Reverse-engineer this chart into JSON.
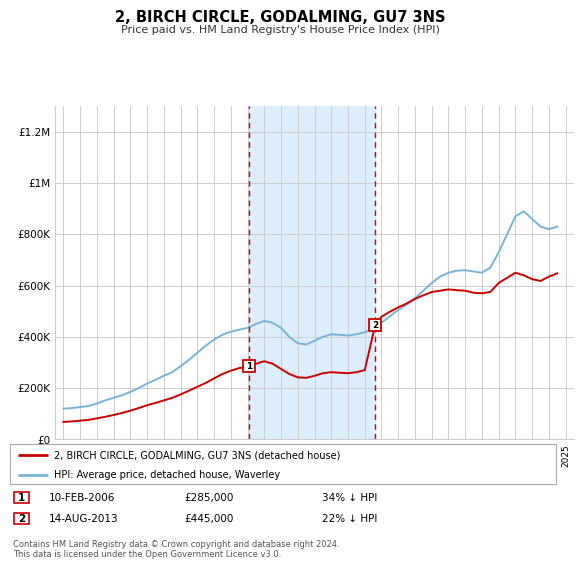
{
  "title": "2, BIRCH CIRCLE, GODALMING, GU7 3NS",
  "subtitle": "Price paid vs. HM Land Registry's House Price Index (HPI)",
  "ylim": [
    0,
    1300000
  ],
  "yticks": [
    0,
    200000,
    400000,
    600000,
    800000,
    1000000,
    1200000
  ],
  "ytick_labels": [
    "£0",
    "£200K",
    "£400K",
    "£600K",
    "£800K",
    "£1M",
    "£1.2M"
  ],
  "xlim_start": 1994.5,
  "xlim_end": 2025.5,
  "background_color": "#ffffff",
  "plot_bg_color": "#ffffff",
  "grid_color": "#cccccc",
  "sale1_x": 2006.11,
  "sale1_y": 285000,
  "sale1_label": "1",
  "sale1_date": "10-FEB-2006",
  "sale1_price": "£285,000",
  "sale1_hpi": "34% ↓ HPI",
  "sale2_x": 2013.62,
  "sale2_y": 445000,
  "sale2_label": "2",
  "sale2_date": "14-AUG-2013",
  "sale2_price": "£445,000",
  "sale2_hpi": "22% ↓ HPI",
  "red_line_color": "#cc0000",
  "blue_line_color": "#7ab3d4",
  "shaded_region_color": "#ddeeff",
  "legend_label_red": "2, BIRCH CIRCLE, GODALMING, GU7 3NS (detached house)",
  "legend_label_blue": "HPI: Average price, detached house, Waverley",
  "footnote": "Contains HM Land Registry data © Crown copyright and database right 2024.\nThis data is licensed under the Open Government Licence v3.0.",
  "hpi_years": [
    1995.0,
    1995.5,
    1996.0,
    1996.5,
    1997.0,
    1997.5,
    1998.0,
    1998.5,
    1999.0,
    1999.5,
    2000.0,
    2000.5,
    2001.0,
    2001.5,
    2002.0,
    2002.5,
    2003.0,
    2003.5,
    2004.0,
    2004.5,
    2005.0,
    2005.5,
    2006.0,
    2006.5,
    2007.0,
    2007.5,
    2008.0,
    2008.5,
    2009.0,
    2009.5,
    2010.0,
    2010.5,
    2011.0,
    2011.5,
    2012.0,
    2012.5,
    2013.0,
    2013.5,
    2014.0,
    2014.5,
    2015.0,
    2015.5,
    2016.0,
    2016.5,
    2017.0,
    2017.5,
    2018.0,
    2018.5,
    2019.0,
    2019.5,
    2020.0,
    2020.5,
    2021.0,
    2021.5,
    2022.0,
    2022.5,
    2023.0,
    2023.5,
    2024.0,
    2024.5
  ],
  "hpi_values": [
    120000,
    122000,
    126000,
    130000,
    140000,
    152000,
    162000,
    172000,
    185000,
    200000,
    218000,
    232000,
    248000,
    262000,
    285000,
    310000,
    338000,
    365000,
    390000,
    408000,
    420000,
    428000,
    435000,
    450000,
    462000,
    455000,
    435000,
    400000,
    375000,
    370000,
    385000,
    400000,
    410000,
    408000,
    405000,
    410000,
    418000,
    430000,
    455000,
    480000,
    505000,
    525000,
    550000,
    580000,
    610000,
    635000,
    650000,
    658000,
    660000,
    655000,
    650000,
    670000,
    730000,
    800000,
    870000,
    890000,
    860000,
    830000,
    820000,
    830000
  ],
  "red_years": [
    1995.0,
    1995.5,
    1996.0,
    1996.5,
    1997.0,
    1997.5,
    1998.0,
    1998.5,
    1999.0,
    1999.5,
    2000.0,
    2000.5,
    2001.0,
    2001.5,
    2002.0,
    2002.5,
    2003.0,
    2003.5,
    2004.0,
    2004.5,
    2005.0,
    2005.5,
    2006.11,
    2006.5,
    2007.0,
    2007.5,
    2008.0,
    2008.5,
    2009.0,
    2009.5,
    2010.0,
    2010.5,
    2011.0,
    2011.5,
    2012.0,
    2012.5,
    2013.0,
    2013.62,
    2014.0,
    2014.5,
    2015.0,
    2015.5,
    2016.0,
    2016.5,
    2017.0,
    2017.5,
    2018.0,
    2018.5,
    2019.0,
    2019.5,
    2020.0,
    2020.5,
    2021.0,
    2021.5,
    2022.0,
    2022.5,
    2023.0,
    2023.5,
    2024.0,
    2024.5
  ],
  "red_values": [
    68000,
    70000,
    73000,
    76000,
    82000,
    88000,
    95000,
    103000,
    112000,
    122000,
    133000,
    142000,
    152000,
    162000,
    175000,
    190000,
    205000,
    220000,
    238000,
    255000,
    268000,
    278000,
    285000,
    295000,
    305000,
    295000,
    275000,
    255000,
    242000,
    240000,
    248000,
    258000,
    262000,
    260000,
    258000,
    262000,
    270000,
    445000,
    478000,
    498000,
    515000,
    530000,
    548000,
    562000,
    575000,
    580000,
    585000,
    582000,
    580000,
    572000,
    570000,
    575000,
    610000,
    630000,
    650000,
    640000,
    625000,
    618000,
    635000,
    648000
  ]
}
